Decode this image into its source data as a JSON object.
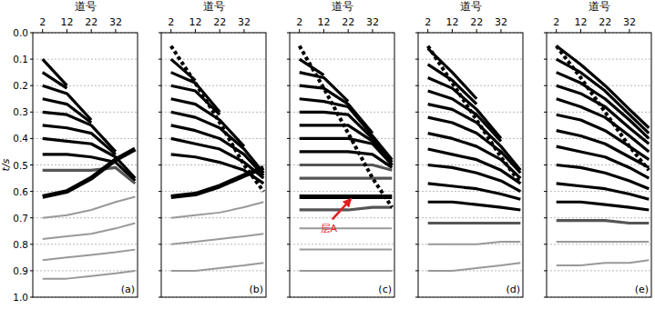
{
  "chart_data": [
    {
      "type": "line",
      "x_label": "道号",
      "y_label": "t/s",
      "label": "(a)",
      "grid": true,
      "tick_labels": true,
      "xlim": [
        -2,
        41
      ],
      "xticks": [
        2,
        12,
        22,
        32
      ],
      "ylim": [
        0,
        1
      ],
      "yticks": [
        {
          "value": 0,
          "label": "0.0"
        },
        {
          "value": 0.1,
          "label": "0.1"
        },
        {
          "value": 0.2,
          "label": "0.2"
        },
        {
          "value": 0.3,
          "label": "0.3"
        },
        {
          "value": 0.4,
          "label": "0.4"
        },
        {
          "value": 0.5,
          "label": "0.5"
        },
        {
          "value": 0.6,
          "label": "0.6"
        },
        {
          "value": 0.7,
          "label": "0.7"
        },
        {
          "value": 0.8,
          "label": "0.8"
        },
        {
          "value": 0.9,
          "label": "0.9"
        },
        {
          "value": 1,
          "label": "1.0"
        }
      ],
      "x": [
        2,
        12,
        22,
        32,
        40
      ],
      "series": [
        {
          "color": "#000000",
          "line_style": "solid",
          "values": [
            0.1,
            0.2,
            null,
            null,
            null
          ]
        },
        {
          "color": "#000000",
          "line_style": "solid",
          "values": [
            0.15,
            0.21,
            null,
            null,
            null
          ]
        },
        {
          "color": "#000000",
          "line_style": "solid",
          "values": [
            0.2,
            0.23,
            0.33,
            null,
            null
          ]
        },
        {
          "color": "#000000",
          "line_style": "solid",
          "values": [
            0.25,
            0.27,
            0.34,
            null,
            null
          ]
        },
        {
          "color": "#000000",
          "line_style": "solid",
          "values": [
            0.3,
            0.31,
            0.35,
            0.45,
            null
          ]
        },
        {
          "color": "#000000",
          "line_style": "solid",
          "values": [
            0.35,
            0.36,
            0.38,
            0.46,
            null
          ]
        },
        {
          "color": "#000000",
          "line_style": "solid",
          "values": [
            0.4,
            0.41,
            0.42,
            0.47,
            0.55
          ]
        },
        {
          "color": "#000000",
          "line_style": "solid",
          "values": [
            0.46,
            0.46,
            0.47,
            0.49,
            0.56
          ]
        },
        {
          "color": "#555555",
          "line_style": "solid",
          "values": [
            0.52,
            0.52,
            0.52,
            0.51,
            0.57
          ]
        },
        {
          "color": "#000000",
          "line_style": "bold",
          "values": [
            0.62,
            0.6,
            0.55,
            0.48,
            0.44
          ]
        },
        {
          "color": "#999999",
          "line_style": "solid",
          "values": [
            0.7,
            0.69,
            0.67,
            0.64,
            0.62
          ]
        },
        {
          "color": "#999999",
          "line_style": "solid",
          "values": [
            0.78,
            0.77,
            0.76,
            0.74,
            0.72
          ]
        },
        {
          "color": "#999999",
          "line_style": "solid",
          "values": [
            0.86,
            0.85,
            0.84,
            0.83,
            0.82
          ]
        },
        {
          "color": "#999999",
          "line_style": "solid",
          "values": [
            0.93,
            0.93,
            0.92,
            0.91,
            0.9
          ]
        }
      ]
    },
    {
      "type": "line",
      "x_label": "道号",
      "label": "(b)",
      "grid": true,
      "tick_labels": "x",
      "xlim": [
        -2,
        41
      ],
      "xticks": [
        2,
        12,
        22,
        32
      ],
      "ylim": [
        0,
        1
      ],
      "yticks": [
        0,
        0.1,
        0.2,
        0.3,
        0.4,
        0.5,
        0.6,
        0.7,
        0.8,
        0.9,
        1
      ],
      "x": [
        2,
        12,
        22,
        32,
        40
      ],
      "series": [
        {
          "color": "#000000",
          "line_style": "solid",
          "values": [
            0.1,
            0.18,
            null,
            null,
            null
          ]
        },
        {
          "color": "#000000",
          "line_style": "solid",
          "values": [
            0.15,
            0.19,
            0.3,
            null,
            null
          ]
        },
        {
          "color": "#000000",
          "line_style": "solid",
          "values": [
            0.2,
            0.22,
            0.31,
            null,
            null
          ]
        },
        {
          "color": "#000000",
          "line_style": "solid",
          "values": [
            0.25,
            0.27,
            0.33,
            0.43,
            null
          ]
        },
        {
          "color": "#000000",
          "line_style": "solid",
          "values": [
            0.3,
            0.32,
            0.36,
            0.44,
            0.53
          ]
        },
        {
          "color": "#000000",
          "line_style": "solid",
          "values": [
            0.35,
            0.37,
            0.4,
            0.46,
            0.54
          ]
        },
        {
          "color": "#000000",
          "line_style": "solid",
          "values": [
            0.4,
            0.42,
            0.44,
            0.49,
            0.55
          ]
        },
        {
          "color": "#000000",
          "line_style": "solid",
          "values": [
            0.46,
            0.47,
            0.49,
            0.52,
            0.57
          ]
        },
        {
          "color": "#000000",
          "line_style": "bold",
          "values": [
            0.62,
            0.61,
            0.58,
            0.54,
            0.51
          ]
        },
        {
          "color": "#999999",
          "line_style": "solid",
          "values": [
            0.7,
            0.69,
            0.68,
            0.66,
            0.64
          ]
        },
        {
          "color": "#999999",
          "line_style": "solid",
          "values": [
            0.8,
            0.79,
            0.78,
            0.77,
            0.76
          ]
        },
        {
          "color": "#999999",
          "line_style": "solid",
          "values": [
            0.9,
            0.9,
            0.89,
            0.88,
            0.87
          ]
        },
        {
          "color": "#000000",
          "line_style": "dashed",
          "values": [
            0.05,
            0.19,
            0.34,
            0.5,
            0.6
          ]
        }
      ]
    },
    {
      "type": "line",
      "x_label": "道号",
      "label": "(c)",
      "grid": true,
      "tick_labels": "x",
      "xlim": [
        -2,
        41
      ],
      "xticks": [
        2,
        12,
        22,
        32
      ],
      "ylim": [
        0,
        1
      ],
      "yticks": [
        0,
        0.1,
        0.2,
        0.3,
        0.4,
        0.5,
        0.6,
        0.7,
        0.8,
        0.9,
        1
      ],
      "x": [
        2,
        12,
        22,
        32,
        40
      ],
      "annotations": [
        {
          "text": "层A",
          "x": 14,
          "y": 0.74,
          "target_x": 23,
          "target_y": 0.63,
          "color": "#e02020"
        }
      ],
      "series": [
        {
          "color": "#000000",
          "line_style": "solid",
          "values": [
            0.1,
            0.16,
            null,
            null,
            null
          ]
        },
        {
          "color": "#000000",
          "line_style": "solid",
          "values": [
            0.15,
            0.17,
            0.26,
            null,
            null
          ]
        },
        {
          "color": "#000000",
          "line_style": "solid",
          "values": [
            0.2,
            0.21,
            0.27,
            0.38,
            null
          ]
        },
        {
          "color": "#000000",
          "line_style": "solid",
          "values": [
            0.25,
            0.26,
            0.28,
            0.39,
            0.48
          ]
        },
        {
          "color": "#000000",
          "line_style": "solid",
          "values": [
            0.3,
            0.3,
            0.31,
            0.4,
            0.49
          ]
        },
        {
          "color": "#000000",
          "line_style": "solid",
          "values": [
            0.35,
            0.35,
            0.35,
            0.41,
            0.5
          ]
        },
        {
          "color": "#000000",
          "line_style": "solid",
          "values": [
            0.4,
            0.4,
            0.4,
            0.42,
            0.5
          ]
        },
        {
          "color": "#000000",
          "line_style": "solid",
          "values": [
            0.45,
            0.45,
            0.45,
            0.46,
            0.51
          ]
        },
        {
          "color": "#555555",
          "line_style": "solid",
          "values": [
            0.5,
            0.5,
            0.5,
            0.5,
            0.52
          ]
        },
        {
          "color": "#555555",
          "line_style": "solid",
          "values": [
            0.55,
            0.55,
            0.55,
            0.55,
            0.55
          ]
        },
        {
          "color": "#000000",
          "line_style": "bold",
          "values": [
            0.62,
            0.62,
            0.62,
            0.62,
            0.62
          ]
        },
        {
          "color": "#555555",
          "line_style": "solid",
          "values": [
            0.67,
            0.67,
            0.67,
            0.66,
            0.66
          ]
        },
        {
          "color": "#999999",
          "line_style": "solid",
          "values": [
            0.74,
            0.74,
            0.74,
            0.74,
            0.74
          ]
        },
        {
          "color": "#999999",
          "line_style": "solid",
          "values": [
            0.82,
            0.82,
            0.82,
            0.82,
            0.82
          ]
        },
        {
          "color": "#999999",
          "line_style": "solid",
          "values": [
            0.9,
            0.9,
            0.9,
            0.9,
            0.9
          ]
        },
        {
          "color": "#000000",
          "line_style": "dashed",
          "values": [
            0.05,
            0.21,
            0.38,
            0.55,
            0.66
          ]
        }
      ]
    },
    {
      "type": "line",
      "x_label": "道号",
      "label": "(d)",
      "grid": true,
      "tick_labels": "x",
      "xlim": [
        -2,
        41
      ],
      "xticks": [
        2,
        12,
        22,
        32
      ],
      "ylim": [
        0,
        1
      ],
      "yticks": [
        0,
        0.1,
        0.2,
        0.3,
        0.4,
        0.5,
        0.6,
        0.7,
        0.8,
        0.9,
        1
      ],
      "x": [
        2,
        12,
        22,
        32,
        40
      ],
      "series": [
        {
          "color": "#000000",
          "line_style": "solid",
          "values": [
            0.06,
            0.15,
            0.25,
            null,
            null
          ]
        },
        {
          "color": "#000000",
          "line_style": "solid",
          "values": [
            0.12,
            0.18,
            0.27,
            null,
            null
          ]
        },
        {
          "color": "#000000",
          "line_style": "solid",
          "values": [
            0.17,
            0.21,
            0.29,
            0.4,
            null
          ]
        },
        {
          "color": "#000000",
          "line_style": "solid",
          "values": [
            0.22,
            0.25,
            0.31,
            0.41,
            null
          ]
        },
        {
          "color": "#000000",
          "line_style": "solid",
          "values": [
            0.27,
            0.29,
            0.34,
            0.43,
            0.52
          ]
        },
        {
          "color": "#000000",
          "line_style": "solid",
          "values": [
            0.32,
            0.34,
            0.38,
            0.45,
            0.53
          ]
        },
        {
          "color": "#000000",
          "line_style": "solid",
          "values": [
            0.38,
            0.4,
            0.43,
            0.48,
            0.55
          ]
        },
        {
          "color": "#000000",
          "line_style": "solid",
          "values": [
            0.44,
            0.46,
            0.48,
            0.52,
            0.57
          ]
        },
        {
          "color": "#000000",
          "line_style": "solid",
          "values": [
            0.5,
            0.51,
            0.53,
            0.56,
            0.6
          ]
        },
        {
          "color": "#000000",
          "line_style": "solid",
          "values": [
            0.57,
            0.58,
            0.59,
            0.61,
            0.63
          ]
        },
        {
          "color": "#000000",
          "line_style": "solid",
          "values": [
            0.64,
            0.64,
            0.65,
            0.66,
            0.67
          ]
        },
        {
          "color": "#555555",
          "line_style": "solid",
          "values": [
            0.72,
            0.72,
            0.72,
            0.72,
            0.72
          ]
        },
        {
          "color": "#999999",
          "line_style": "solid",
          "values": [
            0.8,
            0.8,
            0.8,
            0.79,
            0.79
          ]
        },
        {
          "color": "#999999",
          "line_style": "solid",
          "values": [
            0.9,
            0.9,
            0.89,
            0.88,
            0.87
          ]
        },
        {
          "color": "#000000",
          "line_style": "dashed",
          "values": [
            0.05,
            0.19,
            0.33,
            0.47,
            0.57
          ]
        }
      ]
    },
    {
      "type": "line",
      "x_label": "道号",
      "label": "(e)",
      "grid": true,
      "tick_labels": "x",
      "xlim": [
        -2,
        41
      ],
      "xticks": [
        2,
        12,
        22,
        32
      ],
      "ylim": [
        0,
        1
      ],
      "yticks": [
        0,
        0.1,
        0.2,
        0.3,
        0.4,
        0.5,
        0.6,
        0.7,
        0.8,
        0.9,
        1
      ],
      "x": [
        2,
        12,
        22,
        32,
        40
      ],
      "series": [
        {
          "color": "#000000",
          "line_style": "solid",
          "values": [
            0.05,
            0.12,
            0.2,
            0.29,
            0.36
          ]
        },
        {
          "color": "#000000",
          "line_style": "solid",
          "values": [
            0.1,
            0.15,
            0.22,
            0.31,
            0.38
          ]
        },
        {
          "color": "#000000",
          "line_style": "solid",
          "values": [
            0.15,
            0.19,
            0.25,
            0.33,
            0.4
          ]
        },
        {
          "color": "#000000",
          "line_style": "solid",
          "values": [
            0.2,
            0.23,
            0.28,
            0.36,
            0.42
          ]
        },
        {
          "color": "#000000",
          "line_style": "solid",
          "values": [
            0.25,
            0.28,
            0.32,
            0.39,
            0.45
          ]
        },
        {
          "color": "#000000",
          "line_style": "solid",
          "values": [
            0.31,
            0.33,
            0.37,
            0.43,
            0.48
          ]
        },
        {
          "color": "#000000",
          "line_style": "solid",
          "values": [
            0.37,
            0.39,
            0.42,
            0.47,
            0.51
          ]
        },
        {
          "color": "#000000",
          "line_style": "solid",
          "values": [
            0.43,
            0.45,
            0.47,
            0.51,
            0.55
          ]
        },
        {
          "color": "#000000",
          "line_style": "solid",
          "values": [
            0.5,
            0.51,
            0.53,
            0.56,
            0.59
          ]
        },
        {
          "color": "#000000",
          "line_style": "solid",
          "values": [
            0.57,
            0.58,
            0.59,
            0.61,
            0.63
          ]
        },
        {
          "color": "#000000",
          "line_style": "solid",
          "values": [
            0.64,
            0.64,
            0.65,
            0.66,
            0.67
          ]
        },
        {
          "color": "#555555",
          "line_style": "solid",
          "values": [
            0.71,
            0.71,
            0.71,
            0.72,
            0.72
          ]
        },
        {
          "color": "#999999",
          "line_style": "solid",
          "values": [
            0.79,
            0.79,
            0.79,
            0.79,
            0.79
          ]
        },
        {
          "color": "#999999",
          "line_style": "solid",
          "values": [
            0.88,
            0.88,
            0.87,
            0.87,
            0.86
          ]
        },
        {
          "color": "#000000",
          "line_style": "dashed",
          "values": [
            0.05,
            0.17,
            0.3,
            0.43,
            0.52
          ]
        }
      ]
    }
  ]
}
